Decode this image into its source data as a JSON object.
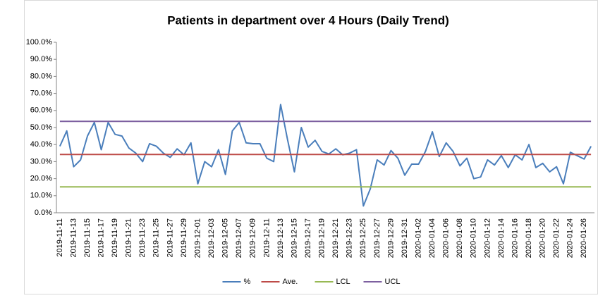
{
  "chart_data": {
    "type": "line",
    "title": "Patients in department over 4 Hours (Daily Trend)",
    "categories": [
      "2019-11-11",
      null,
      "2019-11-13",
      null,
      "2019-11-15",
      null,
      "2019-11-17",
      null,
      "2019-11-19",
      null,
      "2019-11-21",
      null,
      "2019-11-23",
      null,
      "2019-11-25",
      null,
      "2019-11-27",
      null,
      "2019-11-29",
      null,
      "2019-12-01",
      null,
      "2019-12-03",
      null,
      "2019-12-05",
      null,
      "2019-12-07",
      null,
      "2019-12-09",
      null,
      "2019-12-11",
      null,
      "2019-12-13",
      null,
      "2019-12-15",
      null,
      "2019-12-17",
      null,
      "2019-12-19",
      null,
      "2019-12-21",
      null,
      "2019-12-23",
      null,
      "2019-12-25",
      null,
      "2019-12-27",
      null,
      "2019-12-29",
      null,
      "2019-12-31",
      null,
      "2020-01-02",
      null,
      "2020-01-04",
      null,
      "2020-01-06",
      null,
      "2020-01-08",
      null,
      "2020-01-10",
      null,
      "2020-01-12",
      null,
      "2020-01-14",
      null,
      "2020-01-16",
      null,
      "2020-01-18",
      null,
      "2020-01-20",
      null,
      "2020-01-22",
      null,
      "2020-01-24",
      null,
      "2020-01-26",
      null
    ],
    "series": [
      {
        "name": "%",
        "color": "#4a7ebb",
        "values": [
          39,
          48,
          27,
          31,
          45,
          53,
          37,
          53,
          46,
          45,
          38,
          35,
          30,
          40.5,
          39,
          35,
          32.5,
          37.5,
          34,
          41,
          17,
          30,
          27,
          37,
          22.5,
          48,
          53,
          41,
          40.5,
          40.5,
          32,
          30,
          63.5,
          43,
          24,
          50,
          38.5,
          42.5,
          36,
          34.5,
          37.5,
          34,
          35,
          37,
          4,
          14,
          31,
          28,
          36.5,
          32,
          22,
          28.5,
          28.5,
          36,
          47.5,
          33,
          41,
          36,
          27.5,
          32,
          20,
          21,
          31,
          28,
          33.5,
          26.5,
          34,
          31,
          40,
          26.5,
          29,
          24,
          27,
          17,
          35.5,
          33.5,
          31.5,
          39
        ]
      },
      {
        "name": "Ave.",
        "color": "#be4b48",
        "values": [
          34.2,
          34.2,
          34.2,
          34.2,
          34.2,
          34.2,
          34.2,
          34.2,
          34.2,
          34.2,
          34.2,
          34.2,
          34.2,
          34.2,
          34.2,
          34.2,
          34.2,
          34.2,
          34.2,
          34.2,
          34.2,
          34.2,
          34.2,
          34.2,
          34.2,
          34.2,
          34.2,
          34.2,
          34.2,
          34.2,
          34.2,
          34.2,
          34.2,
          34.2,
          34.2,
          34.2,
          34.2,
          34.2,
          34.2,
          34.2,
          34.2,
          34.2,
          34.2,
          34.2,
          34.2,
          34.2,
          34.2,
          34.2,
          34.2,
          34.2,
          34.2,
          34.2,
          34.2,
          34.2,
          34.2,
          34.2,
          34.2,
          34.2,
          34.2,
          34.2,
          34.2,
          34.2,
          34.2,
          34.2,
          34.2,
          34.2,
          34.2,
          34.2,
          34.2,
          34.2,
          34.2,
          34.2,
          34.2,
          34.2,
          34.2,
          34.2,
          34.2,
          34.2
        ]
      },
      {
        "name": "LCL",
        "color": "#98b954",
        "values": [
          15.2,
          15.2,
          15.2,
          15.2,
          15.2,
          15.2,
          15.2,
          15.2,
          15.2,
          15.2,
          15.2,
          15.2,
          15.2,
          15.2,
          15.2,
          15.2,
          15.2,
          15.2,
          15.2,
          15.2,
          15.2,
          15.2,
          15.2,
          15.2,
          15.2,
          15.2,
          15.2,
          15.2,
          15.2,
          15.2,
          15.2,
          15.2,
          15.2,
          15.2,
          15.2,
          15.2,
          15.2,
          15.2,
          15.2,
          15.2,
          15.2,
          15.2,
          15.2,
          15.2,
          15.2,
          15.2,
          15.2,
          15.2,
          15.2,
          15.2,
          15.2,
          15.2,
          15.2,
          15.2,
          15.2,
          15.2,
          15.2,
          15.2,
          15.2,
          15.2,
          15.2,
          15.2,
          15.2,
          15.2,
          15.2,
          15.2,
          15.2,
          15.2,
          15.2,
          15.2,
          15.2,
          15.2,
          15.2,
          15.2,
          15.2,
          15.2,
          15.2,
          15.2
        ]
      },
      {
        "name": "UCL",
        "color": "#7d60a0",
        "values": [
          53.6,
          53.6,
          53.6,
          53.6,
          53.6,
          53.6,
          53.6,
          53.6,
          53.6,
          53.6,
          53.6,
          53.6,
          53.6,
          53.6,
          53.6,
          53.6,
          53.6,
          53.6,
          53.6,
          53.6,
          53.6,
          53.6,
          53.6,
          53.6,
          53.6,
          53.6,
          53.6,
          53.6,
          53.6,
          53.6,
          53.6,
          53.6,
          53.6,
          53.6,
          53.6,
          53.6,
          53.6,
          53.6,
          53.6,
          53.6,
          53.6,
          53.6,
          53.6,
          53.6,
          53.6,
          53.6,
          53.6,
          53.6,
          53.6,
          53.6,
          53.6,
          53.6,
          53.6,
          53.6,
          53.6,
          53.6,
          53.6,
          53.6,
          53.6,
          53.6,
          53.6,
          53.6,
          53.6,
          53.6,
          53.6,
          53.6,
          53.6,
          53.6,
          53.6,
          53.6,
          53.6,
          53.6,
          53.6,
          53.6,
          53.6,
          53.6,
          53.6,
          53.6
        ]
      }
    ],
    "ylim": [
      0,
      100
    ],
    "yticks": [
      {
        "value": 0,
        "label": "0.0%"
      },
      {
        "value": 10,
        "label": "10.0%"
      },
      {
        "value": 20,
        "label": "20.0%"
      },
      {
        "value": 30,
        "label": "30.0%"
      },
      {
        "value": 40,
        "label": "40.0%"
      },
      {
        "value": 50,
        "label": "50.0%"
      },
      {
        "value": 60,
        "label": "60.0%"
      },
      {
        "value": 70,
        "label": "70.0%"
      },
      {
        "value": 80,
        "label": "80.0%"
      },
      {
        "value": 90,
        "label": "90.0%"
      },
      {
        "value": 100,
        "label": "100.0%"
      }
    ],
    "grid": false,
    "legend": "bottom"
  }
}
